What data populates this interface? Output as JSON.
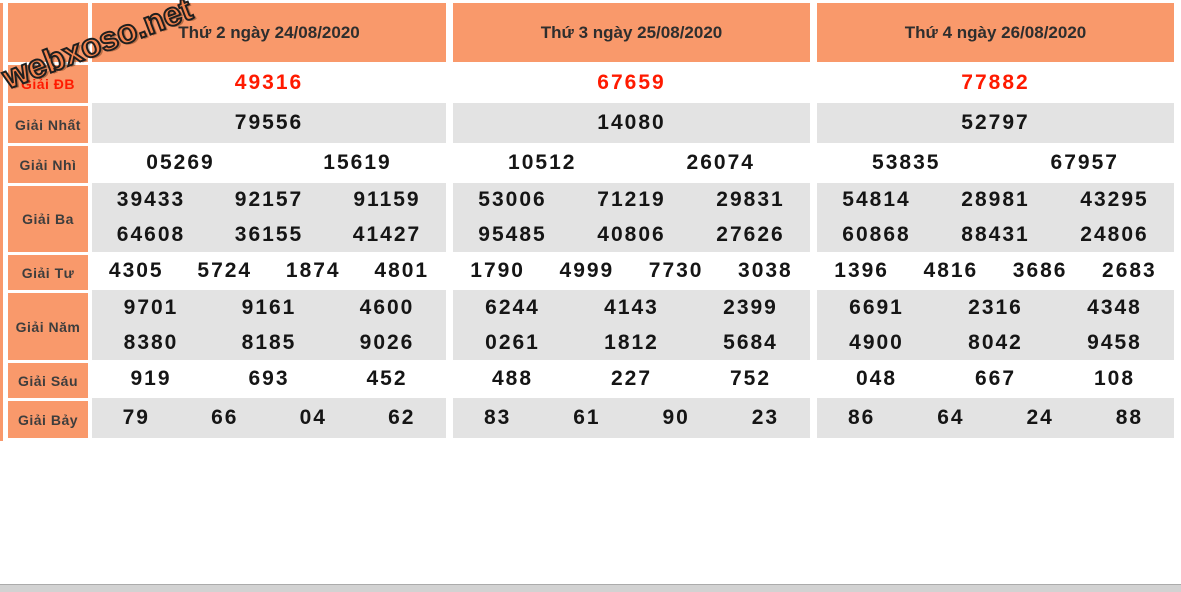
{
  "watermark": {
    "text": "webxoso.net"
  },
  "colors": {
    "accent_orange": "#f9996b",
    "row_gray": "#e3e3e3",
    "special_red": "#ff1a00"
  },
  "prizes": {
    "labels": {
      "db": "Giải ĐB",
      "nhat": "Giải Nhất",
      "nhi": "Giải Nhì",
      "ba": "Giải Ba",
      "tu": "Giải Tư",
      "nam": "Giải Năm",
      "sau": "Giải Sáu",
      "bay": "Giải Bảy"
    },
    "days": [
      {
        "header": "Thứ 2 ngày 24/08/2020",
        "db": "49316",
        "nhat": "79556",
        "nhi": [
          "05269",
          "15619"
        ],
        "ba": [
          [
            "39433",
            "92157",
            "91159"
          ],
          [
            "64608",
            "36155",
            "41427"
          ]
        ],
        "tu": [
          "4305",
          "5724",
          "1874",
          "4801"
        ],
        "nam": [
          [
            "9701",
            "9161",
            "4600"
          ],
          [
            "8380",
            "8185",
            "9026"
          ]
        ],
        "sau": [
          "919",
          "693",
          "452"
        ],
        "bay": [
          "79",
          "66",
          "04",
          "62"
        ]
      },
      {
        "header": "Thứ 3 ngày 25/08/2020",
        "db": "67659",
        "nhat": "14080",
        "nhi": [
          "10512",
          "26074"
        ],
        "ba": [
          [
            "53006",
            "71219",
            "29831"
          ],
          [
            "95485",
            "40806",
            "27626"
          ]
        ],
        "tu": [
          "1790",
          "4999",
          "7730",
          "3038"
        ],
        "nam": [
          [
            "6244",
            "4143",
            "2399"
          ],
          [
            "0261",
            "1812",
            "5684"
          ]
        ],
        "sau": [
          "488",
          "227",
          "752"
        ],
        "bay": [
          "83",
          "61",
          "90",
          "23"
        ]
      },
      {
        "header": "Thứ 4 ngày 26/08/2020",
        "db": "77882",
        "nhat": "52797",
        "nhi": [
          "53835",
          "67957"
        ],
        "ba": [
          [
            "54814",
            "28981",
            "43295"
          ],
          [
            "60868",
            "88431",
            "24806"
          ]
        ],
        "tu": [
          "1396",
          "4816",
          "3686",
          "2683"
        ],
        "nam": [
          [
            "6691",
            "2316",
            "4348"
          ],
          [
            "4900",
            "8042",
            "9458"
          ]
        ],
        "sau": [
          "048",
          "667",
          "108"
        ],
        "bay": [
          "86",
          "64",
          "24",
          "88"
        ]
      }
    ]
  }
}
